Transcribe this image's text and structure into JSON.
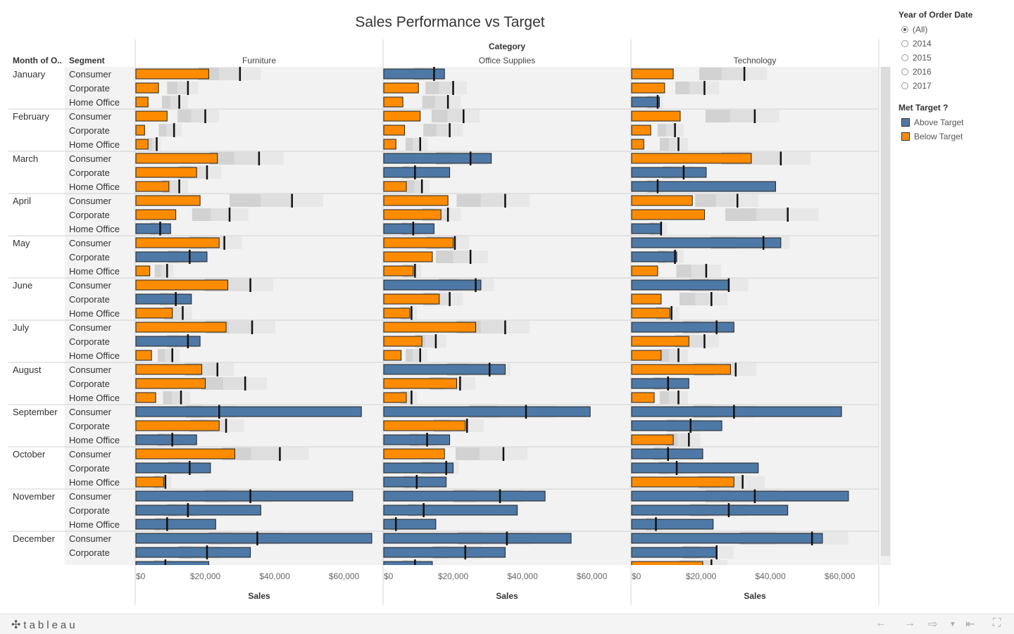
{
  "title": "Sales Performance vs Target",
  "headers": {
    "month": "Month of O..",
    "segment": "Segment",
    "category": "Category"
  },
  "categories": [
    "Furniture",
    "Office Supplies",
    "Technology"
  ],
  "months": [
    "January",
    "February",
    "March",
    "April",
    "May",
    "June",
    "July",
    "August",
    "September",
    "October",
    "November",
    "December"
  ],
  "segments": [
    "Consumer",
    "Corporate",
    "Home Office"
  ],
  "axis": {
    "label": "Sales",
    "ticks": [
      0,
      20000,
      40000,
      60000
    ],
    "tick_labels": [
      "$0",
      "$20,000",
      "$40,000",
      "$60,000"
    ]
  },
  "filter": {
    "title": "Year of Order Date",
    "options": [
      "(All)",
      "2014",
      "2015",
      "2016",
      "2017"
    ],
    "selected": "(All)"
  },
  "legend": {
    "title": "Met Target ?",
    "items": [
      {
        "label": "Above Target",
        "color": "#4e79a7"
      },
      {
        "label": "Below Target",
        "color": "#ff8c00"
      }
    ]
  },
  "footer": {
    "brand": "tableau"
  },
  "chart_data": {
    "type": "bar",
    "subtype": "bullet",
    "rows": "month x segment",
    "columns": [
      "Furniture",
      "Office Supplies",
      "Technology"
    ],
    "xlim": [
      0,
      72000
    ],
    "xlabel": "Sales",
    "series": [
      {
        "name": "Furniture",
        "sales": [
          [
            21000,
            6500,
            3500
          ],
          [
            9000,
            2500,
            3500
          ],
          [
            23500,
            17500,
            9500
          ],
          [
            18500,
            11500,
            10000
          ],
          [
            24000,
            20500,
            4000
          ],
          [
            26500,
            16000,
            10500
          ],
          [
            26000,
            18500,
            4500
          ],
          [
            19000,
            20000,
            5700
          ],
          [
            65000,
            24000,
            17500
          ],
          [
            28500,
            21500,
            8000
          ],
          [
            62500,
            36000,
            23000
          ],
          [
            68000,
            33000,
            21000
          ]
        ],
        "target": [
          [
            30000,
            15000,
            12500
          ],
          [
            20000,
            11000,
            6000
          ],
          [
            35500,
            20500,
            12500
          ],
          [
            45000,
            27000,
            7000
          ],
          [
            25500,
            15500,
            9000
          ],
          [
            33000,
            11500,
            13500
          ],
          [
            33500,
            15000,
            10500
          ],
          [
            23500,
            31500,
            13000
          ],
          [
            24000,
            26000,
            10500
          ],
          [
            41500,
            15500,
            8500
          ],
          [
            33000,
            15000,
            9000
          ],
          [
            35000,
            20500,
            8500
          ]
        ]
      },
      {
        "name": "Office Supplies",
        "sales": [
          [
            17500,
            10000,
            5500
          ],
          [
            10500,
            6000,
            3500
          ],
          [
            31000,
            19000,
            6500
          ],
          [
            18500,
            16500,
            14500
          ],
          [
            20000,
            14000,
            8500
          ],
          [
            28000,
            16000,
            7500
          ],
          [
            26500,
            11000,
            5000
          ],
          [
            35000,
            21000,
            6500
          ],
          [
            59500,
            23500,
            19000
          ],
          [
            17500,
            20000,
            18000
          ],
          [
            46500,
            38500,
            15000
          ],
          [
            54000,
            35000,
            14000
          ]
        ],
        "target": [
          [
            14500,
            20000,
            18500
          ],
          [
            23000,
            19000,
            10500
          ],
          [
            25000,
            9000,
            11000
          ],
          [
            35000,
            18500,
            8500
          ],
          [
            20500,
            25000,
            9000
          ],
          [
            26500,
            19000,
            8000
          ],
          [
            35000,
            15000,
            10500
          ],
          [
            30500,
            22000,
            8000
          ],
          [
            41000,
            24000,
            12500
          ],
          [
            34500,
            18000,
            9500
          ],
          [
            33500,
            11500,
            3500
          ],
          [
            35500,
            23500,
            9000
          ]
        ]
      },
      {
        "name": "Technology",
        "sales": [
          [
            12000,
            9500,
            8000
          ],
          [
            14000,
            5500,
            3500
          ],
          [
            34500,
            21500,
            41500
          ],
          [
            17500,
            21000,
            8500
          ],
          [
            43000,
            13000,
            7500
          ],
          [
            28000,
            8500,
            11000
          ],
          [
            29500,
            16500,
            8500
          ],
          [
            28500,
            16500,
            6500
          ],
          [
            60500,
            26000,
            12000
          ],
          [
            20500,
            36500,
            29500
          ],
          [
            62500,
            45000,
            23500
          ],
          [
            55000,
            24500,
            20500
          ]
        ],
        "target": [
          [
            32500,
            21000,
            7500
          ],
          [
            35500,
            12500,
            13500
          ],
          [
            43000,
            15000,
            7500
          ],
          [
            30500,
            45000,
            8500
          ],
          [
            38000,
            12500,
            21500
          ],
          [
            28000,
            23000,
            11500
          ],
          [
            24500,
            21000,
            13500
          ],
          [
            30000,
            10500,
            13500
          ],
          [
            29500,
            17000,
            16500
          ],
          [
            10500,
            13000,
            32000
          ],
          [
            35500,
            28000,
            7000
          ],
          [
            52000,
            24500,
            23000
          ]
        ]
      }
    ]
  }
}
